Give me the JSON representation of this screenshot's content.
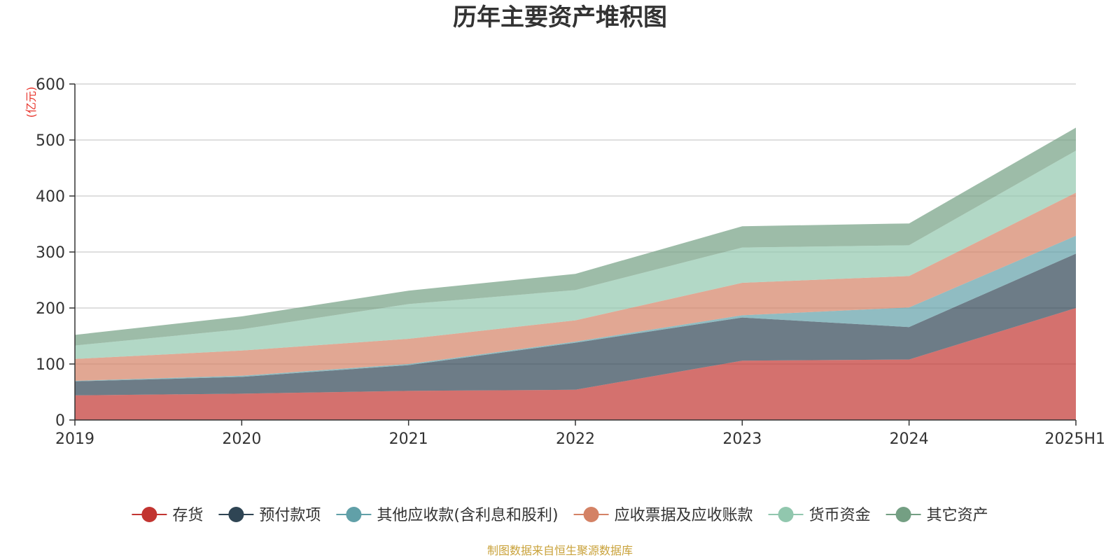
{
  "chart_data": {
    "type": "area",
    "stacked": true,
    "title": "历年主要资产堆积图",
    "unit_label": "(亿元)",
    "source_note": "制图数据来自恒生聚源数据库",
    "categories": [
      "2019",
      "2020",
      "2021",
      "2022",
      "2023",
      "2024",
      "2025H1"
    ],
    "y_ticks": [
      0,
      100,
      200,
      300,
      400,
      500,
      600
    ],
    "ylim": [
      0,
      600
    ],
    "grid": true,
    "legend_position": "bottom",
    "series": [
      {
        "name": "存货",
        "color": "#c23531",
        "values": [
          44,
          47,
          52,
          54,
          106,
          108,
          200
        ]
      },
      {
        "name": "预付款项",
        "color": "#2f4554",
        "values": [
          25,
          30,
          46,
          84,
          77,
          58,
          97
        ]
      },
      {
        "name": "其他应收款(含利息和股利)",
        "color": "#61a0a8",
        "values": [
          1,
          2,
          2,
          2,
          4,
          35,
          32
        ]
      },
      {
        "name": "应收票据及应收账款",
        "color": "#d48265",
        "values": [
          39,
          45,
          45,
          38,
          58,
          56,
          77
        ]
      },
      {
        "name": "货币资金",
        "color": "#91c7ae",
        "values": [
          24,
          38,
          62,
          54,
          63,
          55,
          75
        ]
      },
      {
        "name": "其它资产",
        "color": "#749f83",
        "values": [
          19,
          23,
          24,
          29,
          38,
          39,
          41
        ]
      }
    ]
  }
}
